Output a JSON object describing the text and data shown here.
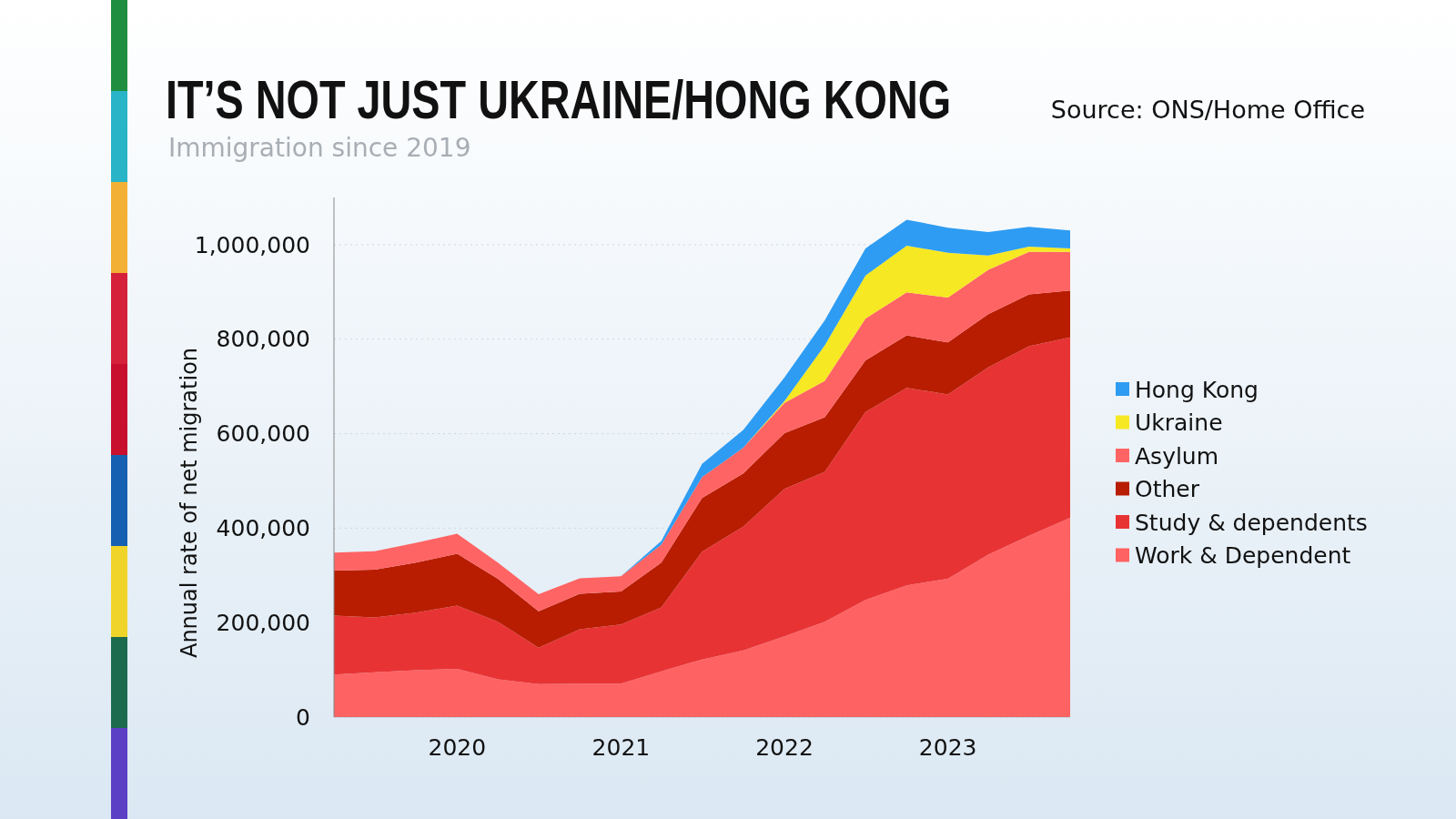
{
  "chart_data": {
    "type": "area",
    "stacked": true,
    "title": "IT’S NOT JUST UKRAINE/HONG KONG",
    "subtitle": "Immigration since 2019",
    "ylabel": "Annual rate of net migration",
    "annotations": [
      "Source: ONS/Home Office"
    ],
    "x": [
      "2019-04",
      "2019-07",
      "2019-10",
      "2020-01",
      "2020-04",
      "2020-07",
      "2020-10",
      "2021-01",
      "2021-04",
      "2021-07",
      "2021-10",
      "2022-01",
      "2022-04",
      "2022-07",
      "2022-10",
      "2023-01",
      "2023-04",
      "2023-07",
      "2023-10"
    ],
    "series": [
      {
        "name": "Work & Dependent",
        "color": "#ff6262",
        "values": [
          90000,
          95000,
          99000,
          102000,
          80000,
          70000,
          71000,
          71000,
          97000,
          122000,
          141000,
          171000,
          202000,
          248000,
          279000,
          293000,
          344000,
          384000,
          422000
        ]
      },
      {
        "name": "Study & dependents",
        "color": "#e83334",
        "values": [
          125000,
          116000,
          122000,
          134000,
          122000,
          77000,
          115000,
          125000,
          135000,
          228000,
          262000,
          312000,
          317000,
          398000,
          418000,
          390000,
          396000,
          401000,
          382000
        ]
      },
      {
        "name": "Other",
        "color": "#b81d02",
        "values": [
          95000,
          101000,
          106000,
          110000,
          91000,
          77000,
          75000,
          70000,
          95000,
          114000,
          113000,
          118000,
          116000,
          109000,
          111000,
          110000,
          113000,
          110000,
          99000
        ]
      },
      {
        "name": "Asylum",
        "color": "#ff6464",
        "values": [
          38000,
          39000,
          42000,
          42000,
          34000,
          36000,
          33000,
          32000,
          38000,
          44000,
          54000,
          64000,
          77000,
          89000,
          91000,
          95000,
          94000,
          90000,
          82000
        ]
      },
      {
        "name": "Ukraine",
        "color": "#f6e822",
        "values": [
          0,
          0,
          0,
          0,
          0,
          0,
          0,
          0,
          0,
          0,
          0,
          4000,
          75000,
          91000,
          99000,
          95000,
          30000,
          11000,
          7000
        ]
      },
      {
        "name": "Hong Kong",
        "color": "#2e9cf2",
        "values": [
          0,
          0,
          0,
          0,
          0,
          0,
          0,
          0,
          8000,
          28000,
          38000,
          50000,
          53000,
          57000,
          55000,
          53000,
          50000,
          42000,
          38000
        ]
      }
    ],
    "xlim": [
      "2019-04",
      "2023-10"
    ],
    "xticks": [
      "2020",
      "2021",
      "2022",
      "2023"
    ],
    "ylim": [
      0,
      1100000
    ],
    "yticks": [
      0,
      {
        "value": 200000,
        "label": "200,000"
      },
      {
        "value": 400000,
        "label": "400,000"
      },
      {
        "value": 600000,
        "label": "600,000"
      },
      {
        "value": 800000,
        "label": "800,000"
      },
      {
        "value": 1000000,
        "label": "1,000,000"
      }
    ],
    "grid": "y",
    "legend": "right"
  }
}
